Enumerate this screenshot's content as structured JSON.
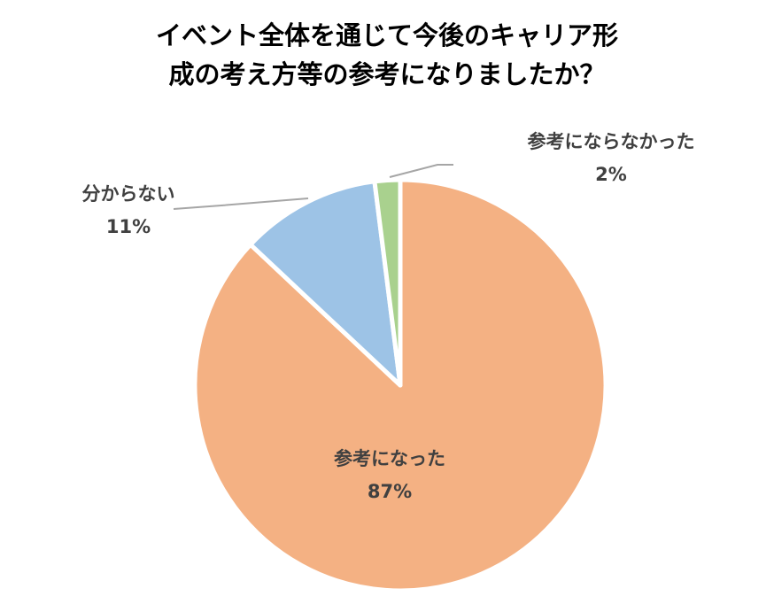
{
  "chart_data": {
    "type": "pie",
    "title_lines": [
      "イベント全体を通じて今後のキャリア形",
      "成の考え方等の参考になりましたか？"
    ],
    "slices": [
      {
        "label": "参考になった",
        "value": 87,
        "value_label": "87%",
        "color": "#F4B183"
      },
      {
        "label": "分からない",
        "value": 11,
        "value_label": "11%",
        "color": "#9DC3E6"
      },
      {
        "label": "参考にならなかった",
        "value": 2,
        "value_label": "2%",
        "color": "#A9D18E"
      }
    ],
    "start": "top",
    "direction": "clockwise",
    "legend": "none"
  }
}
